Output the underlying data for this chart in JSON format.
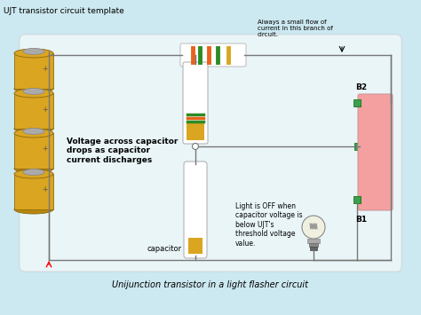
{
  "bg_color": "#cce8f0",
  "title": "UJT transistor circuit template",
  "subtitle": "Unijunction transistor in a light flasher circuit",
  "title_fontsize": 6.5,
  "subtitle_fontsize": 7,
  "text_voltage": "Voltage across capacitor\ndrops as capacitor\ncurrent discharges",
  "text_always": "Always a small flow of\ncurrent in this branch of\ncircuit.",
  "text_light": "Light is OFF when\ncapacitor voltage is\nbelow UJT's\nthreshold voltage\nvalue.",
  "text_capacitor": "capacitor",
  "label_b2": "B2",
  "label_b1": "B1",
  "battery_color": "#DAA520",
  "battery_cap_color": "#999999",
  "resistor_body_color": "#FFFFFF",
  "stripe_orange": "#E8621A",
  "stripe_green": "#2E8B22",
  "stripe_gold": "#DAA520",
  "ujt_color": "#F4A0A0",
  "ujt_terminal_color": "#3AA050",
  "wire_color": "#777777",
  "text_color": "#000000",
  "wire_lw": 1.0
}
